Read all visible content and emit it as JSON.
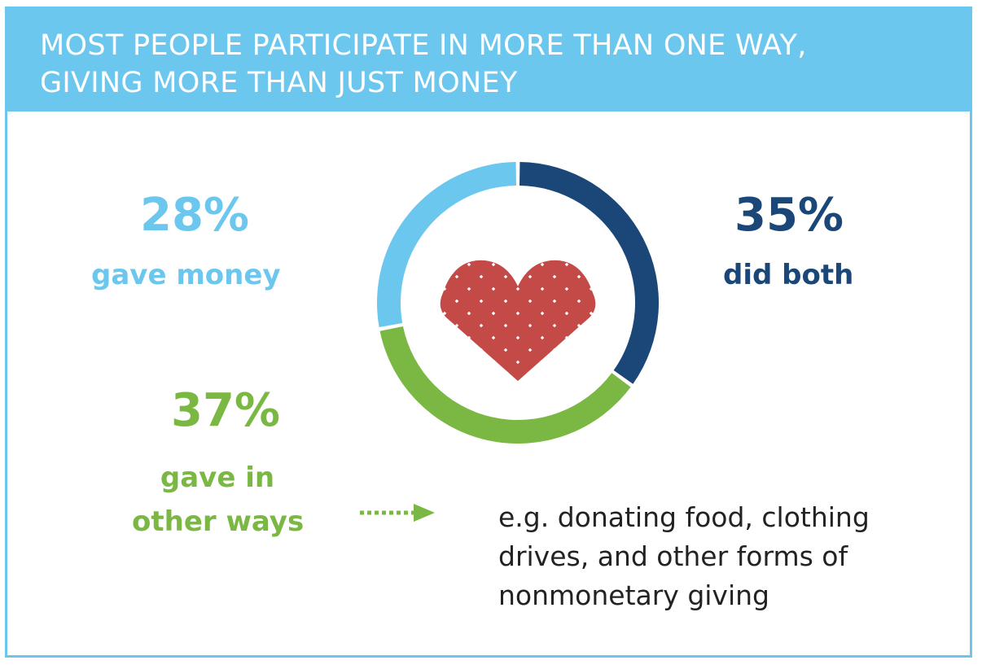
{
  "colors": {
    "header": "#6cc7ee",
    "money": "#6cc7ee",
    "both": "#1a4777",
    "other": "#7ab843",
    "heart": "#c44a47",
    "text": "#222222"
  },
  "icons": [
    "heart-logo-icon",
    "dotted-arrow-icon"
  ],
  "chart_data": {
    "type": "pie",
    "style": "donut",
    "title": [
      "MOST PEOPLE PARTICIPATE IN MORE THAN ONE WAY,",
      "GIVING MORE THAN JUST MONEY"
    ],
    "unit": "%",
    "slices": [
      {
        "key": "both",
        "percent": "35%",
        "label": "did both",
        "value": 35,
        "color": "#1a4777"
      },
      {
        "key": "other",
        "percent": "37%",
        "label_lines": [
          "gave in",
          "other ways"
        ],
        "value": 37,
        "color": "#7ab843"
      },
      {
        "key": "money",
        "percent": "28%",
        "label": "gave money",
        "value": 28,
        "color": "#6cc7ee"
      }
    ],
    "annotation": {
      "target": "other",
      "lines": [
        "e.g. donating food, clothing",
        "drives, and other forms of",
        "nonmonetary giving"
      ]
    }
  }
}
